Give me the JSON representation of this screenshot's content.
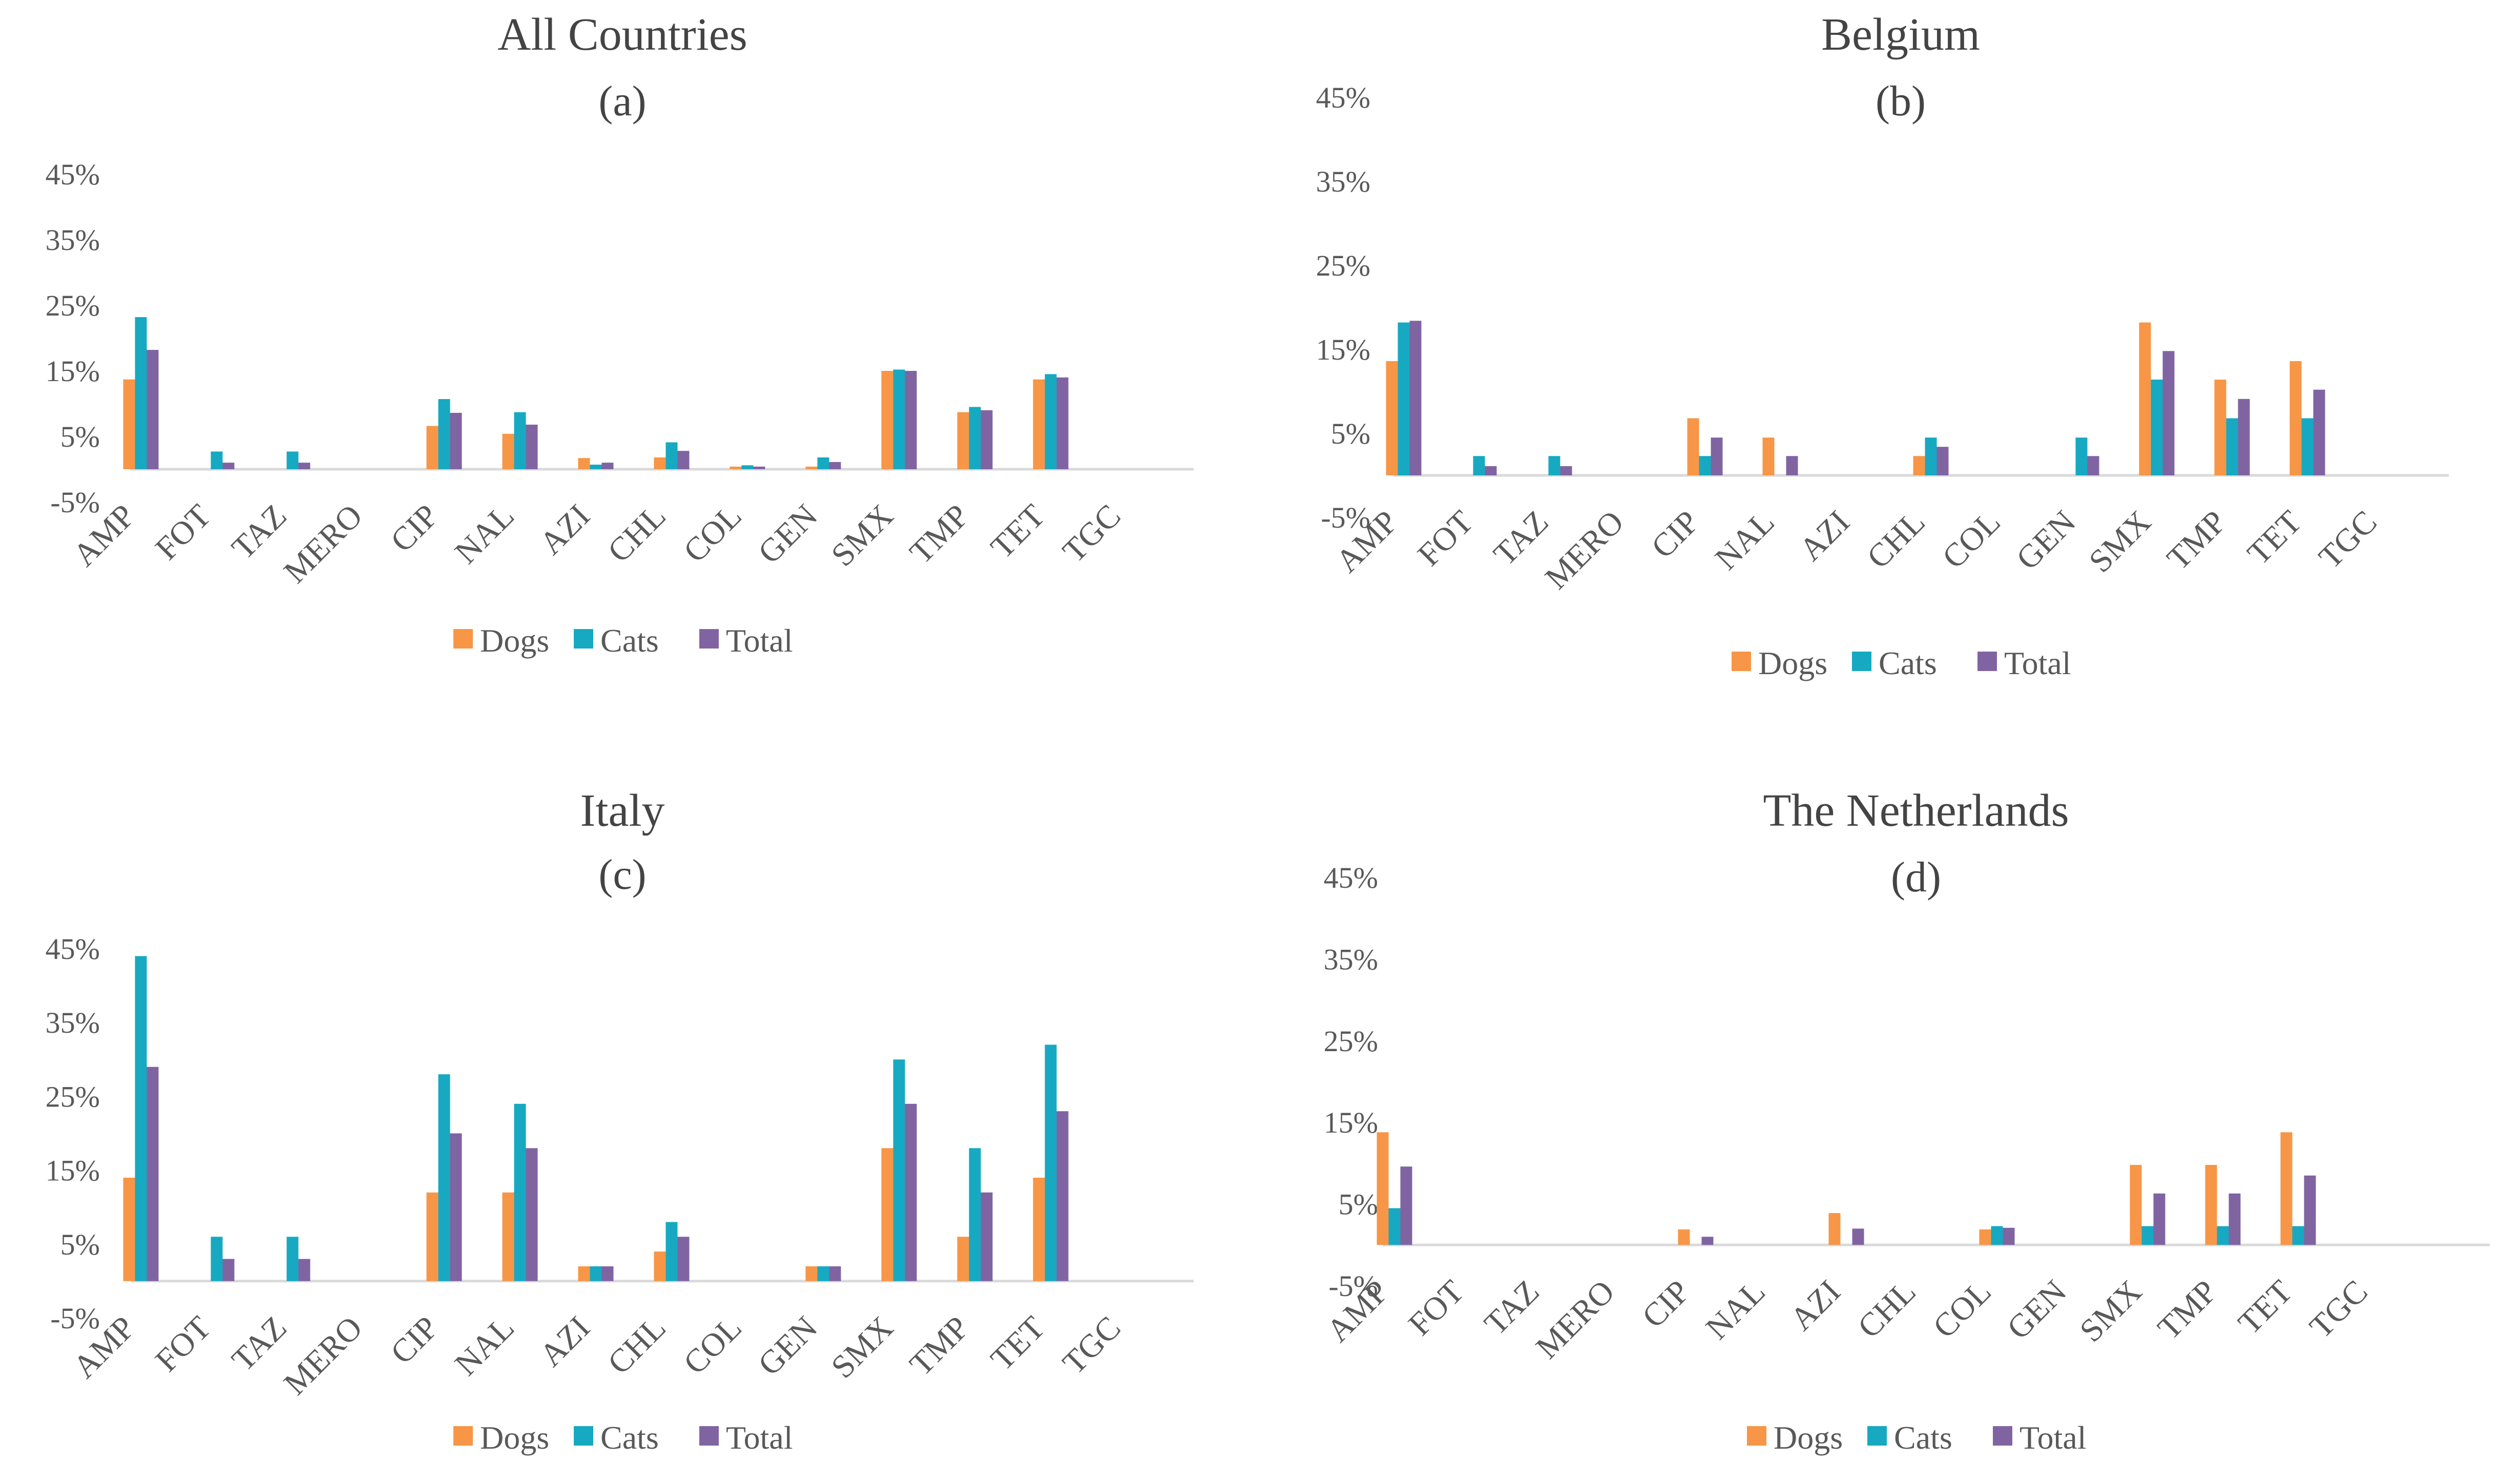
{
  "colors": {
    "Dogs": "#f79646",
    "Cats": "#17a9c1",
    "Total": "#8064a2",
    "axis": "#d9d9d9",
    "text": "#595959"
  },
  "chart_data": [
    {
      "type": "bar",
      "title": "All Countries",
      "subtitle": "(a)",
      "categories": [
        "AMP",
        "FOT",
        "TAZ",
        "MERO",
        "CIP",
        "NAL",
        "AZI",
        "CHL",
        "COL",
        "GEN",
        "SMX",
        "TMP",
        "TET",
        "TGC"
      ],
      "series": [
        {
          "name": "Dogs",
          "values": [
            13.7,
            0,
            0,
            0,
            6.6,
            5.4,
            1.7,
            1.8,
            0.4,
            0.4,
            15.0,
            8.7,
            13.7,
            0
          ]
        },
        {
          "name": "Cats",
          "values": [
            23.2,
            2.7,
            2.7,
            0,
            10.7,
            8.7,
            0.7,
            4.1,
            0.6,
            1.8,
            15.2,
            9.5,
            14.5,
            0
          ]
        },
        {
          "name": "Total",
          "values": [
            18.2,
            1.0,
            1.0,
            0,
            8.6,
            6.8,
            1.0,
            2.8,
            0.4,
            1.1,
            15.0,
            9.0,
            14.0,
            0
          ]
        }
      ],
      "yticks": [
        "45%",
        "35%",
        "25%",
        "15%",
        "5%",
        "-5%"
      ],
      "ylim": [
        -5,
        45
      ]
    },
    {
      "type": "bar",
      "title": "Belgium",
      "subtitle": "(b)",
      "categories": [
        "AMP",
        "FOT",
        "TAZ",
        "MERO",
        "CIP",
        "NAL",
        "AZI",
        "CHL",
        "COL",
        "GEN",
        "SMX",
        "TMP",
        "TET",
        "TGC"
      ],
      "series": [
        {
          "name": "Dogs",
          "values": [
            13.6,
            0,
            0,
            0,
            6.8,
            4.5,
            0,
            2.3,
            0,
            0,
            18.2,
            11.4,
            13.6,
            0
          ]
        },
        {
          "name": "Cats",
          "values": [
            18.2,
            2.3,
            2.3,
            0,
            2.3,
            0,
            0,
            4.5,
            0,
            4.5,
            11.4,
            6.8,
            6.8,
            0
          ]
        },
        {
          "name": "Total",
          "values": [
            18.4,
            1.1,
            1.1,
            0,
            4.5,
            2.3,
            0,
            3.4,
            0,
            2.3,
            14.8,
            9.1,
            10.2,
            0
          ]
        }
      ],
      "yticks": [
        "45%",
        "35%",
        "25%",
        "15%",
        "5%",
        "-5%"
      ],
      "ylim": [
        -5,
        45
      ]
    },
    {
      "type": "bar",
      "title": "Italy",
      "subtitle": "(c)",
      "categories": [
        "AMP",
        "FOT",
        "TAZ",
        "MERO",
        "CIP",
        "NAL",
        "AZI",
        "CHL",
        "COL",
        "GEN",
        "SMX",
        "TMP",
        "TET",
        "TGC"
      ],
      "series": [
        {
          "name": "Dogs",
          "values": [
            14,
            0,
            0,
            0,
            12,
            12,
            2,
            4,
            0,
            2,
            18,
            6,
            14,
            0
          ]
        },
        {
          "name": "Cats",
          "values": [
            44,
            6,
            6,
            0,
            28,
            24,
            2,
            8,
            0,
            2,
            30,
            18,
            32,
            0
          ]
        },
        {
          "name": "Total",
          "values": [
            29,
            3,
            3,
            0,
            20,
            18,
            2,
            6,
            0,
            2,
            24,
            12,
            23,
            0
          ]
        }
      ],
      "yticks": [
        "45%",
        "35%",
        "25%",
        "15%",
        "5%",
        "-5%"
      ],
      "ylim": [
        -5,
        45
      ]
    },
    {
      "type": "bar",
      "title": "The Netherlands",
      "subtitle": "(d)",
      "categories": [
        "AMP",
        "FOT",
        "TAZ",
        "MERO",
        "CIP",
        "NAL",
        "AZI",
        "CHL",
        "COL",
        "GEN",
        "SMX",
        "TMP",
        "TET",
        "TGC"
      ],
      "series": [
        {
          "name": "Dogs",
          "values": [
            13.8,
            0,
            0,
            0,
            1.9,
            0,
            3.9,
            0,
            1.9,
            0,
            9.8,
            9.8,
            13.8,
            0
          ]
        },
        {
          "name": "Cats",
          "values": [
            4.5,
            0,
            0,
            0,
            0,
            0,
            0,
            0,
            2.3,
            0,
            2.3,
            2.3,
            2.3,
            0
          ]
        },
        {
          "name": "Total",
          "values": [
            9.6,
            0,
            0,
            0,
            1.0,
            0,
            2.0,
            0,
            2.1,
            0,
            6.3,
            6.3,
            8.5,
            0
          ]
        }
      ],
      "yticks": [
        "45%",
        "35%",
        "25%",
        "15%",
        "5%",
        "-5%"
      ],
      "ylim": [
        -5,
        45
      ]
    }
  ]
}
